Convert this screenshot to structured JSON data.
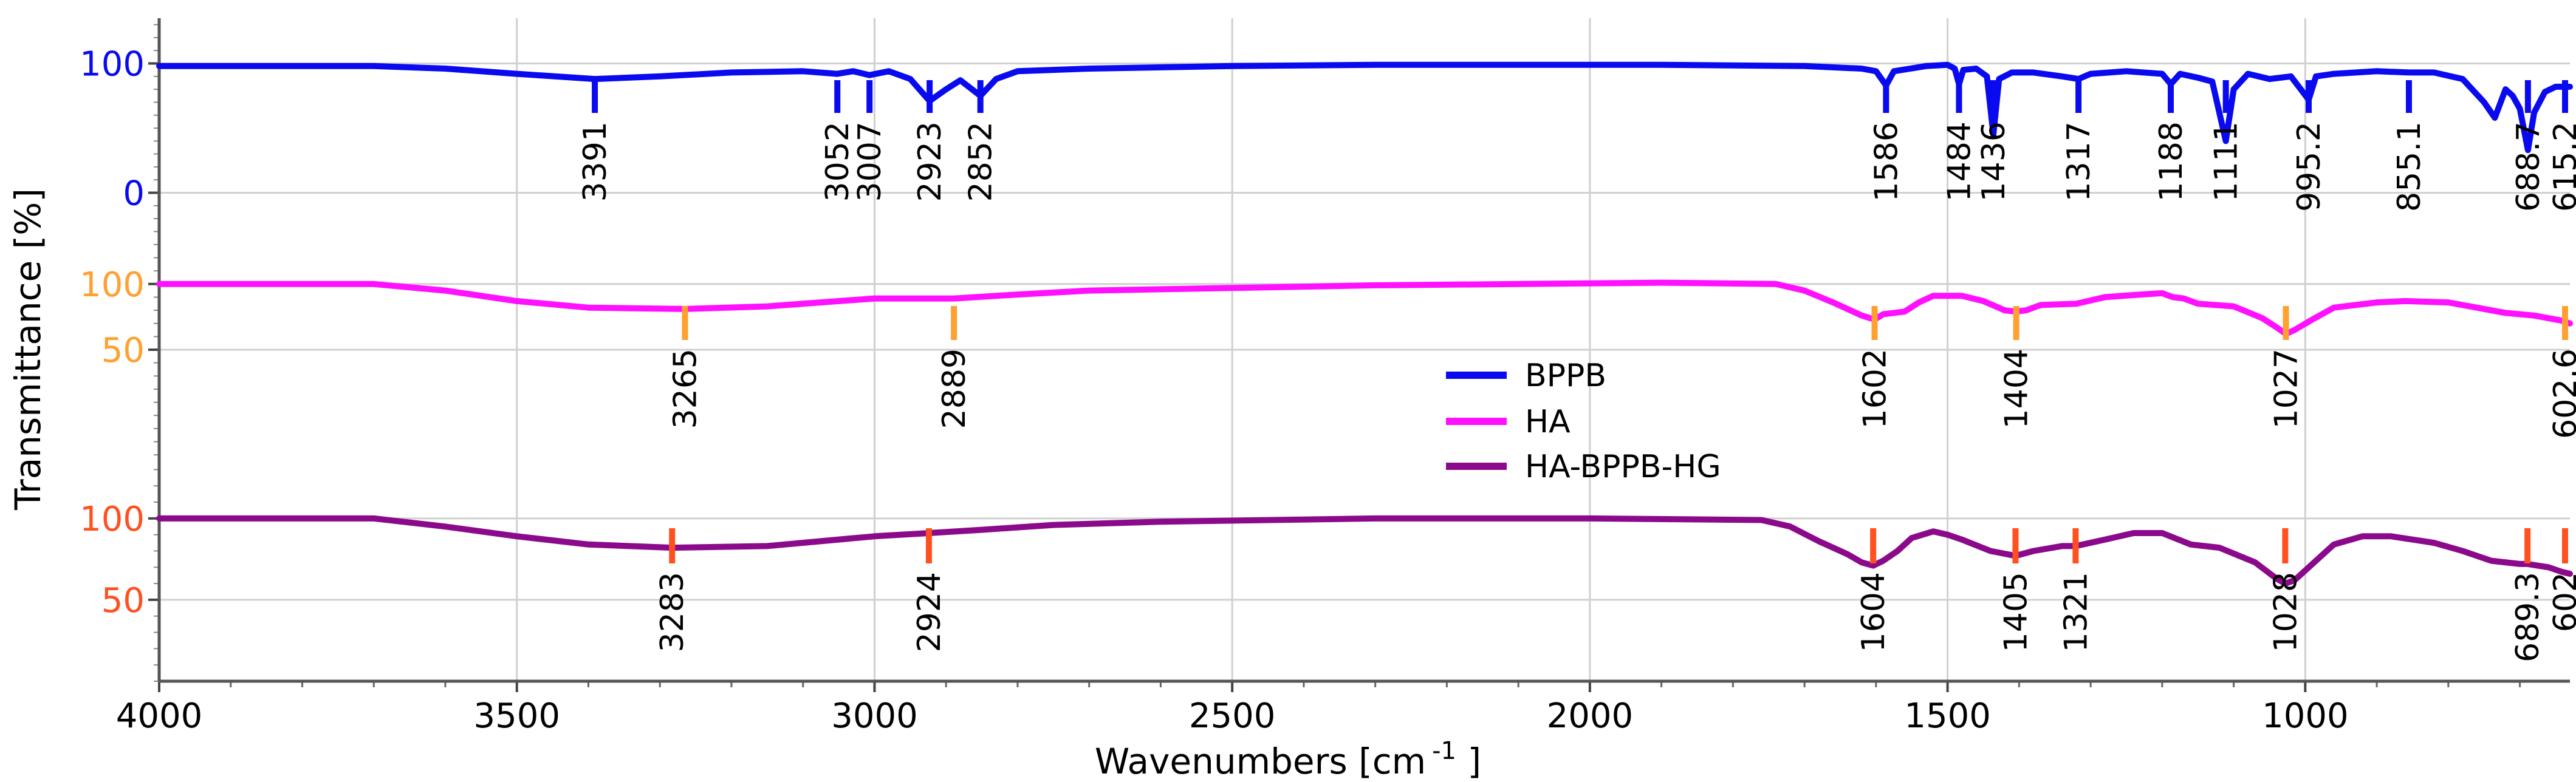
{
  "chart_data": {
    "type": "line",
    "xlabel": "Wavenumbers [cm",
    "xlabel_sup": "-1",
    "xlabel_tail": " ]",
    "ylabel": "Transmittance [%]",
    "xlim": [
      4000,
      630
    ],
    "x_ticks": [
      4000,
      3500,
      3000,
      2500,
      2000,
      1500,
      1000
    ],
    "x_tick_labels": [
      "4000",
      "3500",
      "3000",
      "2500",
      "2000",
      "1500",
      "1000"
    ],
    "grid": true,
    "legend_position": "center",
    "legend": [
      {
        "label": "BPPB",
        "color": "#0a0af0"
      },
      {
        "label": "HA",
        "color": "#ff10ff"
      },
      {
        "label": "HA-BPPB-HG",
        "color": "#8b0a8b"
      }
    ],
    "panels": [
      {
        "name": "BPPB",
        "color": "#0a0af0",
        "marker_color": "#0a0af0",
        "tick_label_color": "#0a0af0",
        "ylim": [
          -35,
          135
        ],
        "y_ticks": [
          0,
          100
        ],
        "y_tick_labels": [
          "0",
          "100"
        ],
        "points": [
          [
            4000,
            98
          ],
          [
            3800,
            98
          ],
          [
            3700,
            98
          ],
          [
            3600,
            96
          ],
          [
            3500,
            92
          ],
          [
            3391,
            88
          ],
          [
            3300,
            90
          ],
          [
            3200,
            93
          ],
          [
            3100,
            94
          ],
          [
            3052,
            92
          ],
          [
            3030,
            94
          ],
          [
            3007,
            91
          ],
          [
            2980,
            94
          ],
          [
            2950,
            88
          ],
          [
            2923,
            71
          ],
          [
            2900,
            80
          ],
          [
            2880,
            87
          ],
          [
            2852,
            75
          ],
          [
            2830,
            88
          ],
          [
            2800,
            94
          ],
          [
            2700,
            96
          ],
          [
            2500,
            98
          ],
          [
            2300,
            99
          ],
          [
            2100,
            99
          ],
          [
            1900,
            99
          ],
          [
            1700,
            98
          ],
          [
            1620,
            96
          ],
          [
            1600,
            94
          ],
          [
            1586,
            83
          ],
          [
            1575,
            94
          ],
          [
            1530,
            98
          ],
          [
            1500,
            99
          ],
          [
            1490,
            96
          ],
          [
            1484,
            84
          ],
          [
            1478,
            95
          ],
          [
            1460,
            96
          ],
          [
            1445,
            90
          ],
          [
            1436,
            45
          ],
          [
            1428,
            88
          ],
          [
            1410,
            93
          ],
          [
            1380,
            93
          ],
          [
            1340,
            90
          ],
          [
            1317,
            88
          ],
          [
            1300,
            92
          ],
          [
            1250,
            94
          ],
          [
            1200,
            92
          ],
          [
            1188,
            84
          ],
          [
            1175,
            92
          ],
          [
            1150,
            89
          ],
          [
            1130,
            86
          ],
          [
            1111,
            40
          ],
          [
            1100,
            80
          ],
          [
            1080,
            92
          ],
          [
            1050,
            88
          ],
          [
            1020,
            90
          ],
          [
            995.2,
            72
          ],
          [
            985,
            90
          ],
          [
            960,
            92
          ],
          [
            900,
            94
          ],
          [
            855.1,
            93
          ],
          [
            820,
            93
          ],
          [
            780,
            88
          ],
          [
            750,
            70
          ],
          [
            735,
            58
          ],
          [
            720,
            80
          ],
          [
            710,
            75
          ],
          [
            700,
            65
          ],
          [
            688.7,
            33
          ],
          [
            680,
            62
          ],
          [
            665,
            78
          ],
          [
            650,
            82
          ],
          [
            630,
            82
          ]
        ],
        "peaks": [
          {
            "x": 3391,
            "label": "3391"
          },
          {
            "x": 3052,
            "label": "3052"
          },
          {
            "x": 3007,
            "label": "3007"
          },
          {
            "x": 2923,
            "label": "2923"
          },
          {
            "x": 2852,
            "label": "2852"
          },
          {
            "x": 1586,
            "label": "1586"
          },
          {
            "x": 1484,
            "label": "1484"
          },
          {
            "x": 1436,
            "label": "1436"
          },
          {
            "x": 1317,
            "label": "1317"
          },
          {
            "x": 1188,
            "label": "1188"
          },
          {
            "x": 1111,
            "label": "1111"
          },
          {
            "x": 995.2,
            "label": "995.2"
          },
          {
            "x": 855.1,
            "label": "855.1"
          },
          {
            "x": 688.7,
            "label": "688.7"
          },
          {
            "x": 615.2,
            "label": "615.2"
          }
        ]
      },
      {
        "name": "HA",
        "color": "#ff10ff",
        "marker_color": "#ffa030",
        "tick_label_color": "#ffa030",
        "ylim": [
          -35,
          135
        ],
        "y_ticks": [
          50,
          100
        ],
        "y_tick_labels": [
          "50",
          "100"
        ],
        "points": [
          [
            4000,
            100
          ],
          [
            3700,
            100
          ],
          [
            3600,
            95
          ],
          [
            3500,
            87
          ],
          [
            3400,
            82
          ],
          [
            3265,
            81
          ],
          [
            3150,
            83
          ],
          [
            3000,
            89
          ],
          [
            2889,
            89
          ],
          [
            2800,
            92
          ],
          [
            2700,
            95
          ],
          [
            2500,
            97
          ],
          [
            2300,
            99
          ],
          [
            2100,
            100
          ],
          [
            1900,
            101
          ],
          [
            1740,
            100
          ],
          [
            1700,
            95
          ],
          [
            1660,
            86
          ],
          [
            1620,
            76
          ],
          [
            1602,
            73
          ],
          [
            1590,
            77
          ],
          [
            1560,
            79
          ],
          [
            1540,
            86
          ],
          [
            1520,
            91
          ],
          [
            1480,
            91
          ],
          [
            1450,
            87
          ],
          [
            1420,
            80
          ],
          [
            1404,
            79
          ],
          [
            1390,
            80
          ],
          [
            1370,
            84
          ],
          [
            1320,
            85
          ],
          [
            1280,
            90
          ],
          [
            1230,
            92
          ],
          [
            1200,
            93
          ],
          [
            1185,
            90
          ],
          [
            1170,
            89
          ],
          [
            1150,
            85
          ],
          [
            1100,
            83
          ],
          [
            1060,
            74
          ],
          [
            1040,
            67
          ],
          [
            1027,
            62
          ],
          [
            1015,
            65
          ],
          [
            990,
            73
          ],
          [
            960,
            82
          ],
          [
            900,
            86
          ],
          [
            860,
            87
          ],
          [
            800,
            86
          ],
          [
            760,
            82
          ],
          [
            720,
            78
          ],
          [
            680,
            76
          ],
          [
            640,
            72
          ],
          [
            630,
            70
          ]
        ],
        "peaks": [
          {
            "x": 3265,
            "label": "3265"
          },
          {
            "x": 2889,
            "label": "2889"
          },
          {
            "x": 1602,
            "label": "1602"
          },
          {
            "x": 1404,
            "label": "1404"
          },
          {
            "x": 1027,
            "label": "1027"
          },
          {
            "x": 602.6,
            "label": "602.6"
          }
        ]
      },
      {
        "name": "HA-BPPB-HG",
        "color": "#8b0a8b",
        "marker_color": "#ff5020",
        "tick_label_color": "#ff5020",
        "ylim": [
          0,
          135
        ],
        "y_ticks": [
          50,
          100
        ],
        "y_tick_labels": [
          "50",
          "100"
        ],
        "points": [
          [
            4000,
            100
          ],
          [
            3700,
            100
          ],
          [
            3600,
            95
          ],
          [
            3500,
            89
          ],
          [
            3400,
            84
          ],
          [
            3283,
            82
          ],
          [
            3150,
            83
          ],
          [
            3000,
            89
          ],
          [
            2924,
            91
          ],
          [
            2850,
            93
          ],
          [
            2750,
            96
          ],
          [
            2600,
            98
          ],
          [
            2300,
            100
          ],
          [
            2000,
            100
          ],
          [
            1760,
            99
          ],
          [
            1720,
            95
          ],
          [
            1680,
            86
          ],
          [
            1640,
            78
          ],
          [
            1620,
            73
          ],
          [
            1604,
            71
          ],
          [
            1590,
            74
          ],
          [
            1570,
            80
          ],
          [
            1550,
            88
          ],
          [
            1520,
            92
          ],
          [
            1500,
            90
          ],
          [
            1480,
            87
          ],
          [
            1440,
            80
          ],
          [
            1405,
            77
          ],
          [
            1380,
            80
          ],
          [
            1340,
            83
          ],
          [
            1321,
            83
          ],
          [
            1280,
            87
          ],
          [
            1240,
            91
          ],
          [
            1200,
            91
          ],
          [
            1160,
            84
          ],
          [
            1120,
            82
          ],
          [
            1070,
            73
          ],
          [
            1040,
            63
          ],
          [
            1028,
            60
          ],
          [
            1015,
            62
          ],
          [
            990,
            72
          ],
          [
            960,
            84
          ],
          [
            920,
            89
          ],
          [
            880,
            89
          ],
          [
            820,
            85
          ],
          [
            780,
            80
          ],
          [
            740,
            74
          ],
          [
            700,
            72
          ],
          [
            689.3,
            72
          ],
          [
            660,
            70
          ],
          [
            640,
            67
          ],
          [
            630,
            66
          ]
        ],
        "peaks": [
          {
            "x": 3283,
            "label": "3283"
          },
          {
            "x": 2924,
            "label": "2924"
          },
          {
            "x": 1604,
            "label": "1604"
          },
          {
            "x": 1405,
            "label": "1405"
          },
          {
            "x": 1321,
            "label": "1321"
          },
          {
            "x": 1028,
            "label": "1028"
          },
          {
            "x": 689.3,
            "label": "689.3"
          },
          {
            "x": 602,
            "label": "602"
          }
        ]
      }
    ]
  }
}
